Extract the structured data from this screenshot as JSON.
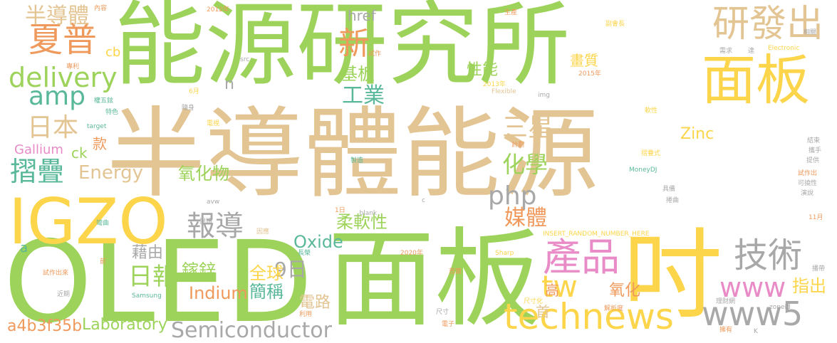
{
  "palette": {
    "green": "#9dd35a",
    "tan": "#e3c493",
    "orange": "#ef9a5c",
    "yellow": "#fcd54a",
    "teal": "#5ab89a",
    "gray": "#a8a8a8",
    "pink": "#e98bc7",
    "lavender": "#b9a7dc"
  },
  "words": [
    {
      "t": "能源研究所"
    },
    {
      "t": "半導體能源"
    },
    {
      "t": "OLED"
    },
    {
      "t": "面板"
    },
    {
      "t": "吋"
    },
    {
      "t": "IGZO"
    },
    {
      "t": "面板"
    },
    {
      "t": "研發出"
    },
    {
      "t": "夏普"
    },
    {
      "t": "delivery"
    },
    {
      "t": "amp"
    },
    {
      "t": "半導體"
    },
    {
      "t": "技術"
    },
    {
      "t": "產品"
    },
    {
      "t": "technews"
    },
    {
      "t": "www5"
    },
    {
      "t": "www"
    },
    {
      "t": "tw"
    },
    {
      "t": "php"
    },
    {
      "t": "報導"
    },
    {
      "t": "摺疊"
    },
    {
      "t": "日本"
    },
    {
      "t": "三星"
    },
    {
      "t": "化學"
    },
    {
      "t": "媒體"
    },
    {
      "t": "新"
    },
    {
      "t": "工業"
    },
    {
      "t": "Semiconductor"
    },
    {
      "t": "9日"
    },
    {
      "t": "日報"
    },
    {
      "t": "Energy"
    },
    {
      "t": "Indium"
    },
    {
      "t": "Laboratory"
    },
    {
      "t": "a4b3f35b"
    },
    {
      "t": "柔軟性"
    },
    {
      "t": "Oxide"
    },
    {
      "t": "全球"
    },
    {
      "t": "簡稱"
    },
    {
      "t": "鎵鋅"
    },
    {
      "t": "指出"
    },
    {
      "t": "氧化物"
    },
    {
      "t": "藉由"
    },
    {
      "t": "基板"
    },
    {
      "t": "性能"
    },
    {
      "t": "畫質"
    },
    {
      "t": "Zinc"
    },
    {
      "t": "Gallium"
    },
    {
      "t": "href"
    },
    {
      "t": "cb"
    },
    {
      "t": "ck"
    },
    {
      "t": "款"
    },
    {
      "t": "高"
    },
    {
      "t": "首"
    },
    {
      "t": "氧化"
    },
    {
      "t": "電路"
    },
    {
      "t": "n"
    },
    {
      "t": "a"
    },
    {
      "t": "內容"
    },
    {
      "t": "2012年"
    },
    {
      "t": "生產"
    },
    {
      "t": "副會長"
    },
    {
      "t": "相關"
    },
    {
      "t": "試作"
    },
    {
      "t": "src"
    },
    {
      "t": "專利"
    },
    {
      "t": "2015年"
    },
    {
      "t": "Electronic"
    },
    {
      "t": "需求"
    },
    {
      "t": "達"
    },
    {
      "t": "2013年"
    },
    {
      "t": "Flexible"
    },
    {
      "t": "6月"
    },
    {
      "t": "img"
    },
    {
      "t": "權五鉉"
    },
    {
      "t": "特色"
    },
    {
      "t": "隨身"
    },
    {
      "t": "電視"
    },
    {
      "t": "target"
    },
    {
      "t": "軟性"
    },
    {
      "t": "計劃"
    },
    {
      "t": "製造"
    },
    {
      "t": "結束"
    },
    {
      "t": "攜手"
    },
    {
      "t": "提供"
    },
    {
      "t": "MoneyDJ"
    },
    {
      "t": "摺疊式"
    },
    {
      "t": "試作出"
    },
    {
      "t": "可撓性"
    },
    {
      "t": "具備"
    },
    {
      "t": "avw"
    },
    {
      "t": "c"
    },
    {
      "t": "演說"
    },
    {
      "t": "閱讀"
    },
    {
      "t": "捲曲"
    },
    {
      "t": "彎曲"
    },
    {
      "t": "1日"
    },
    {
      "t": "_blank"
    },
    {
      "t": "11月"
    },
    {
      "t": "因應"
    },
    {
      "t": "INSERT_RANDOM_NUMBER_HERE"
    },
    {
      "t": "長榮"
    },
    {
      "t": "2020年"
    },
    {
      "t": "Sharp"
    },
    {
      "t": "前"
    },
    {
      "t": "試作出來"
    },
    {
      "t": "首爾"
    },
    {
      "t": "播帶"
    },
    {
      "t": "Samsung"
    },
    {
      "t": "近期"
    },
    {
      "t": "利用"
    },
    {
      "t": "尺寸"
    },
    {
      "t": "尺寸化"
    },
    {
      "t": "解析度"
    },
    {
      "t": "理財網"
    },
    {
      "t": "zoneid"
    },
    {
      "t": "電子"
    },
    {
      "t": "擁有"
    },
    {
      "t": "K"
    }
  ]
}
